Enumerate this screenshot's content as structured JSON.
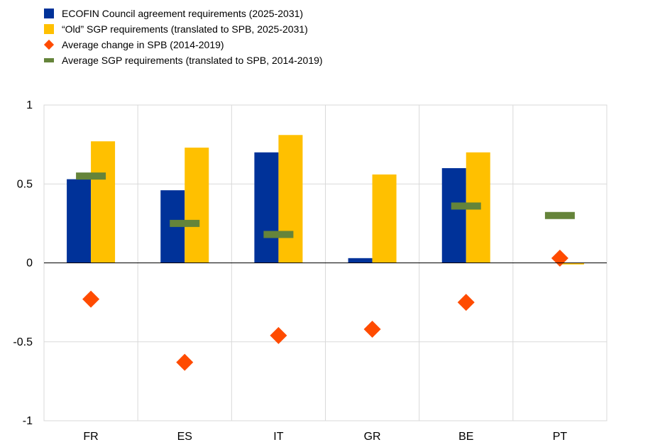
{
  "chart_data": {
    "type": "bar",
    "categories": [
      "FR",
      "ES",
      "IT",
      "GR",
      "BE",
      "PT"
    ],
    "series": [
      {
        "name": "ECOFIN Council agreement requirements (2025-2031)",
        "kind": "bar",
        "color": "#003299",
        "values": [
          0.53,
          0.46,
          0.7,
          0.03,
          0.6,
          0.0
        ]
      },
      {
        "name": "“Old” SGP requirements (translated to SPB, 2025-2031)",
        "kind": "bar",
        "color": "#FFC000",
        "values": [
          0.77,
          0.73,
          0.81,
          0.56,
          0.7,
          -0.01
        ]
      },
      {
        "name": "Average change in SPB (2014-2019)",
        "kind": "diamond",
        "color": "#FF4B00",
        "values": [
          -0.23,
          -0.63,
          -0.46,
          -0.42,
          -0.25,
          0.03
        ]
      },
      {
        "name": "Average SGP requirements (translated to SPB, 2014-2019)",
        "kind": "dash",
        "color": "#65843A",
        "values": [
          0.55,
          0.25,
          0.18,
          null,
          0.36,
          0.3
        ]
      }
    ],
    "ylim": [
      -1,
      1
    ],
    "yticks": [
      1,
      0.5,
      0,
      -0.5,
      -1
    ],
    "ytick_labels": [
      "1",
      "0.5",
      "0",
      "-0.5",
      "-1"
    ],
    "grid": true,
    "legend_position": "top-left"
  }
}
